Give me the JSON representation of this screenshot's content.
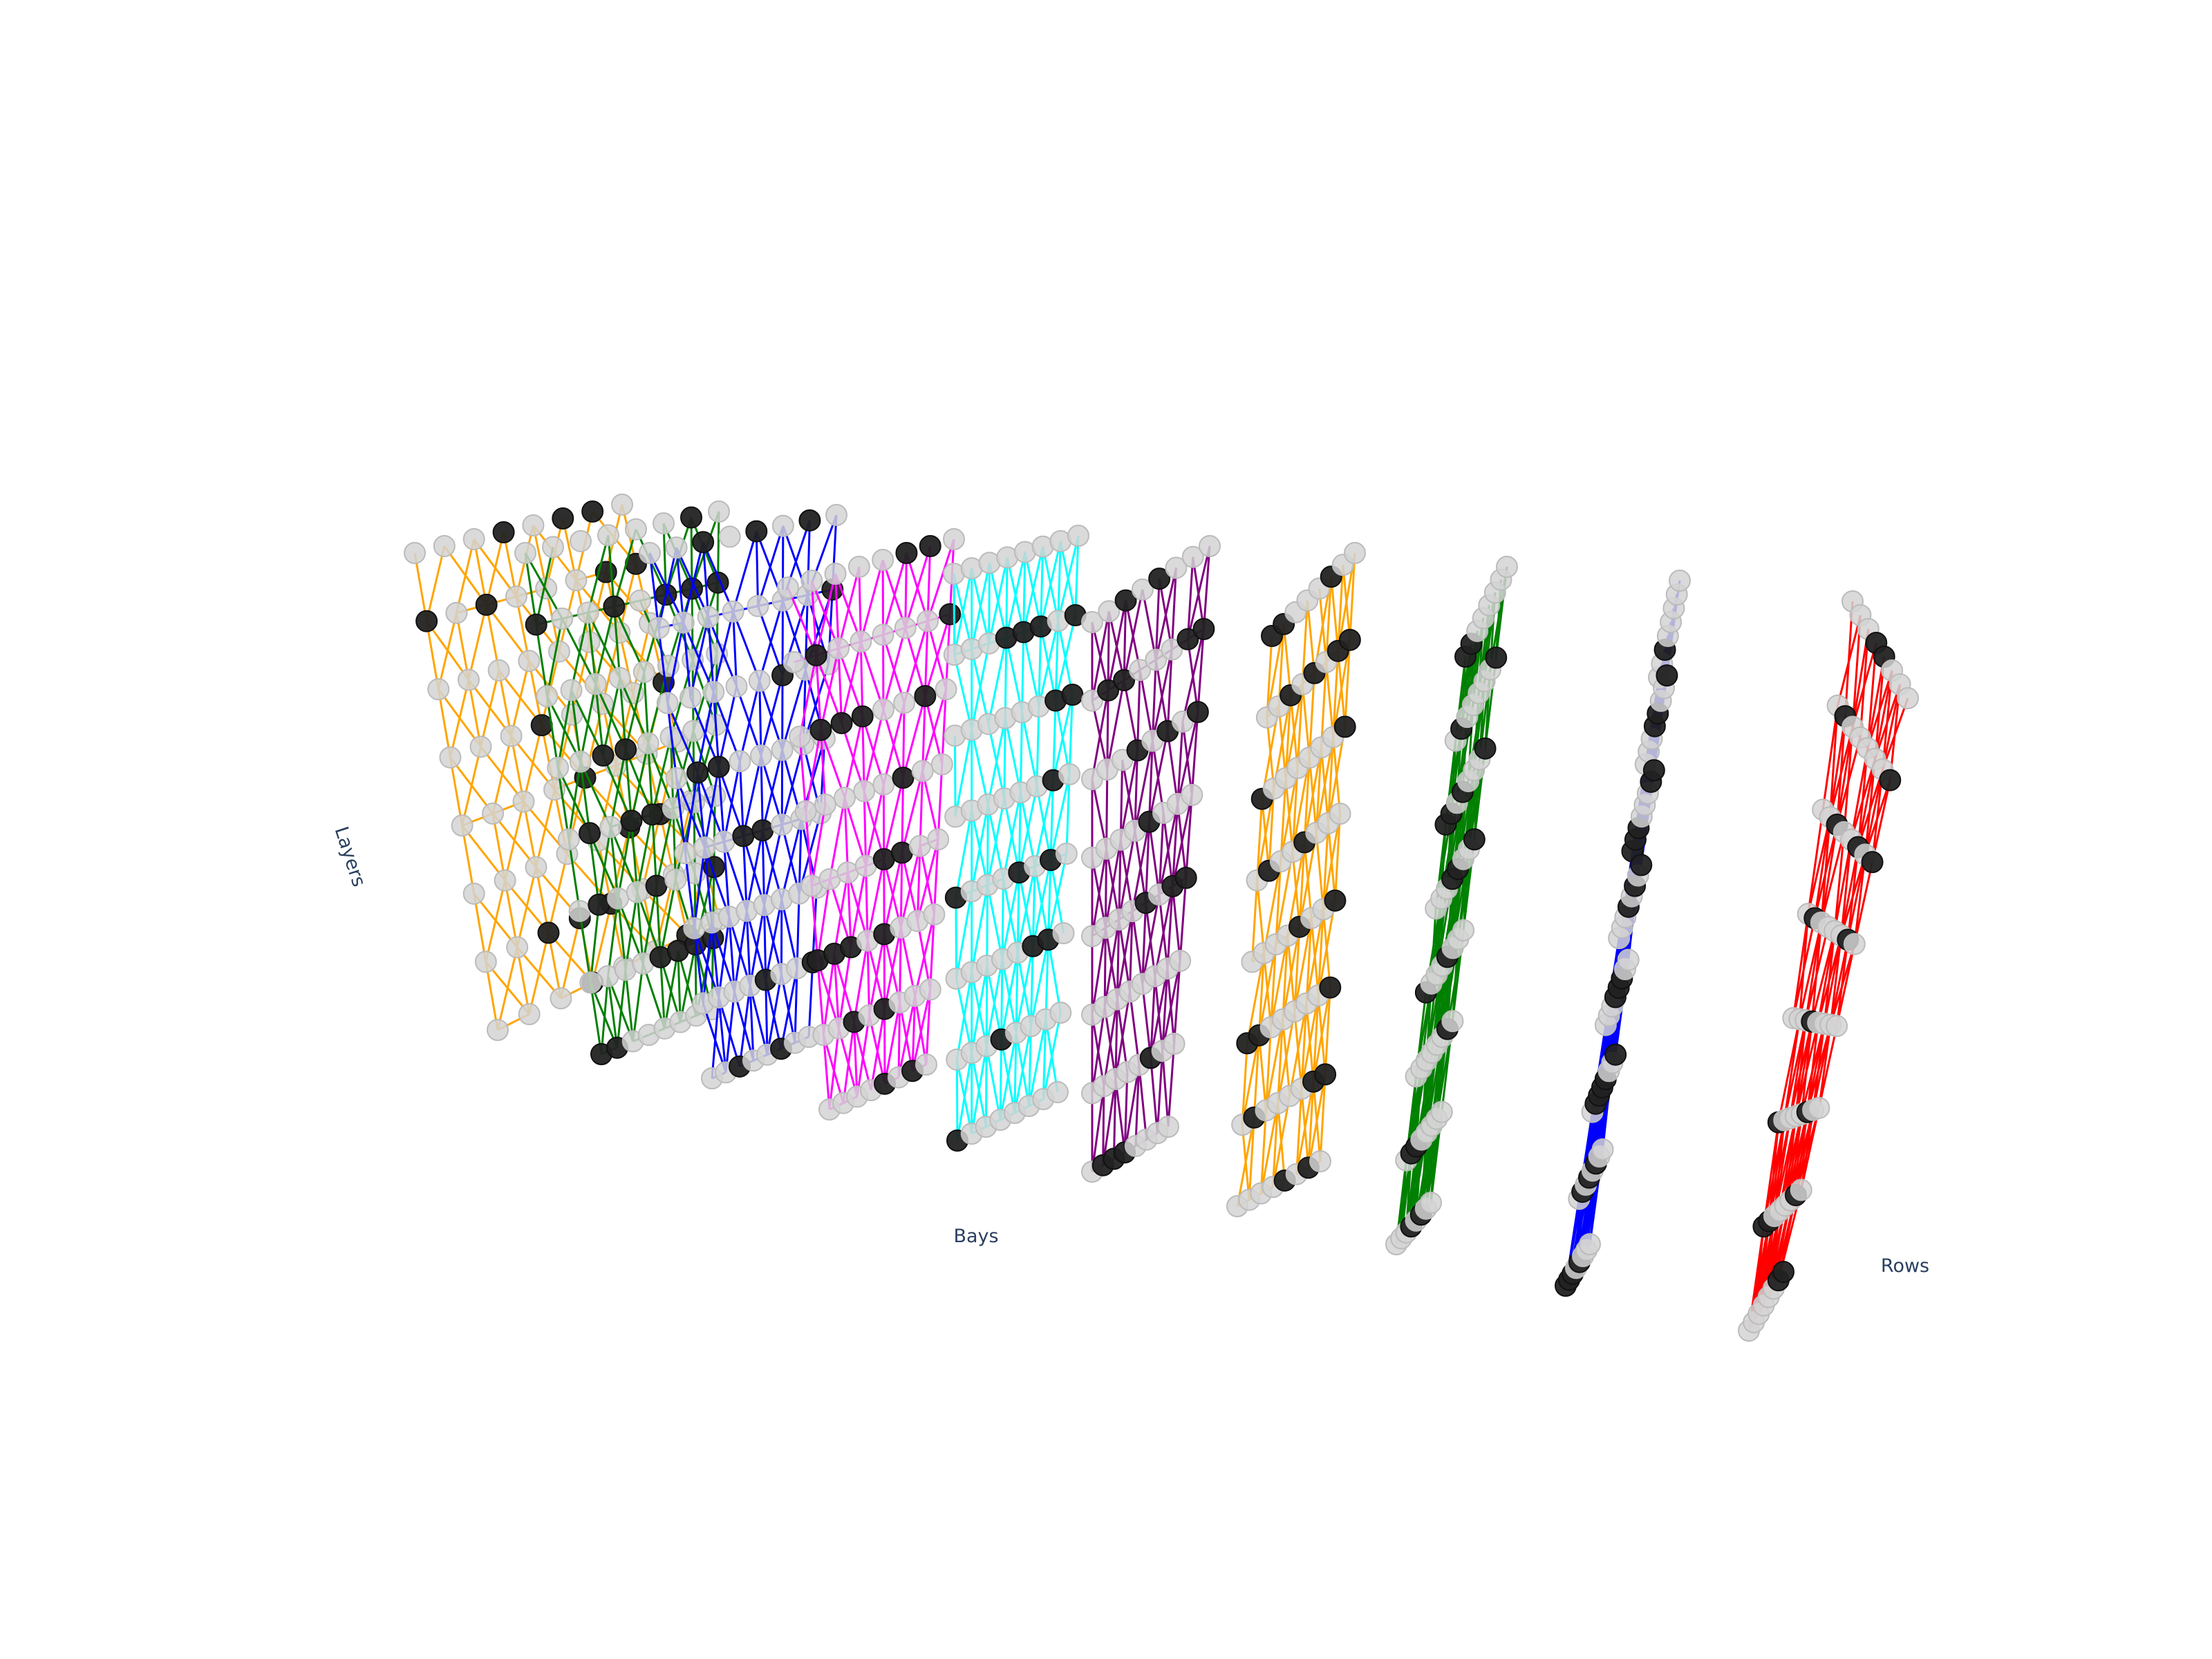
{
  "chart_data": {
    "type": "scatter3d",
    "xlabel": "Rows",
    "ylabel": "Bays",
    "zlabel": "Layers",
    "grid": false,
    "legend": "none",
    "node_colors": {
      "empty": "#d3d3d3",
      "filled": "#222222"
    },
    "series": [
      {
        "color": "#FFA500",
        "row": 1,
        "bays": 8,
        "layers": 8
      },
      {
        "color": "#008000",
        "row": 2,
        "bays": 8,
        "layers": 8
      },
      {
        "color": "#0000FF",
        "row": 3,
        "bays": 8,
        "layers": 8
      },
      {
        "color": "#FF00FF",
        "row": 4,
        "bays": 8,
        "layers": 8
      },
      {
        "color": "#00FFFF",
        "row": 5,
        "bays": 8,
        "layers": 8
      },
      {
        "color": "#800080",
        "row": 6,
        "bays": 8,
        "layers": 8
      },
      {
        "color": "#FFA500",
        "row": 7,
        "bays": 8,
        "layers": 8
      },
      {
        "color": "#008000",
        "row": 8,
        "bays": 8,
        "layers": 8
      },
      {
        "color": "#0000FF",
        "row": 9,
        "bays": 8,
        "layers": 8
      },
      {
        "color": "#FF0000",
        "row": 10,
        "bays": 8,
        "layers": 8
      }
    ]
  }
}
